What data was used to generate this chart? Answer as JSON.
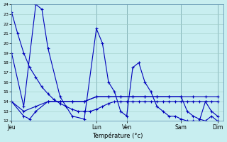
{
  "title": "Température (°c)",
  "bg_color": "#c8eef0",
  "line_color": "#0000bb",
  "grid_color": "#a0ccc8",
  "tick_labels": [
    "Jeu",
    "Lun",
    "Ven",
    "Sam",
    "Dim"
  ],
  "tick_positions": [
    0,
    14,
    19,
    28,
    34
  ],
  "ylim": [
    12,
    24
  ],
  "yticks": [
    12,
    13,
    14,
    15,
    16,
    17,
    18,
    19,
    20,
    21,
    22,
    23,
    24
  ],
  "xlim": [
    0,
    35
  ],
  "line1_x": [
    0,
    1,
    2,
    3,
    4,
    5,
    6,
    7,
    8,
    9,
    10,
    11,
    12,
    13,
    14,
    15,
    16,
    17,
    18,
    19,
    20,
    21,
    22,
    23,
    24,
    25,
    26,
    27,
    28,
    29,
    30,
    31,
    32,
    33,
    34
  ],
  "line1_y": [
    23.2,
    21.0,
    19.0,
    17.5,
    16.5,
    15.5,
    14.8,
    14.2,
    13.8,
    13.5,
    13.2,
    13.0,
    13.0,
    13.0,
    13.2,
    13.5,
    13.8,
    14.0,
    14.0,
    14.0,
    14.0,
    14.0,
    14.0,
    14.0,
    14.0,
    14.0,
    14.0,
    14.0,
    14.0,
    14.0,
    14.0,
    14.0,
    14.0,
    14.0,
    14.0
  ],
  "line2_x": [
    0,
    2,
    4,
    5,
    6,
    8,
    10,
    12,
    14,
    15,
    16,
    17,
    18,
    19,
    20,
    21,
    22,
    23,
    24,
    25,
    26,
    27,
    28,
    29,
    30,
    31,
    32,
    33,
    34
  ],
  "line2_y": [
    19.0,
    13.5,
    24.0,
    23.5,
    19.5,
    14.5,
    12.5,
    12.2,
    21.5,
    20.0,
    16.0,
    15.0,
    13.0,
    12.5,
    17.5,
    18.0,
    16.0,
    15.0,
    13.5,
    13.0,
    12.5,
    12.5,
    12.2,
    12.0,
    12.0,
    12.0,
    14.0,
    13.0,
    12.5
  ],
  "line3_x": [
    0,
    2,
    3,
    4,
    6,
    8,
    10,
    12,
    14,
    16,
    18,
    20,
    22,
    24,
    26,
    28,
    30,
    32,
    34
  ],
  "line3_y": [
    14.0,
    12.5,
    12.2,
    13.0,
    14.0,
    14.0,
    14.0,
    14.0,
    14.5,
    14.5,
    14.5,
    14.5,
    14.5,
    14.5,
    14.5,
    14.5,
    14.5,
    14.5,
    14.5
  ],
  "line4_x": [
    0,
    2,
    4,
    6,
    8,
    10,
    12,
    14,
    16,
    18,
    20,
    22,
    24,
    26,
    28,
    29,
    30,
    31,
    32,
    33,
    34
  ],
  "line4_y": [
    14.0,
    13.0,
    13.5,
    14.0,
    14.0,
    14.0,
    14.0,
    14.5,
    14.5,
    14.5,
    14.5,
    14.5,
    14.5,
    14.5,
    14.5,
    13.0,
    12.5,
    12.2,
    12.0,
    12.5,
    12.0
  ]
}
